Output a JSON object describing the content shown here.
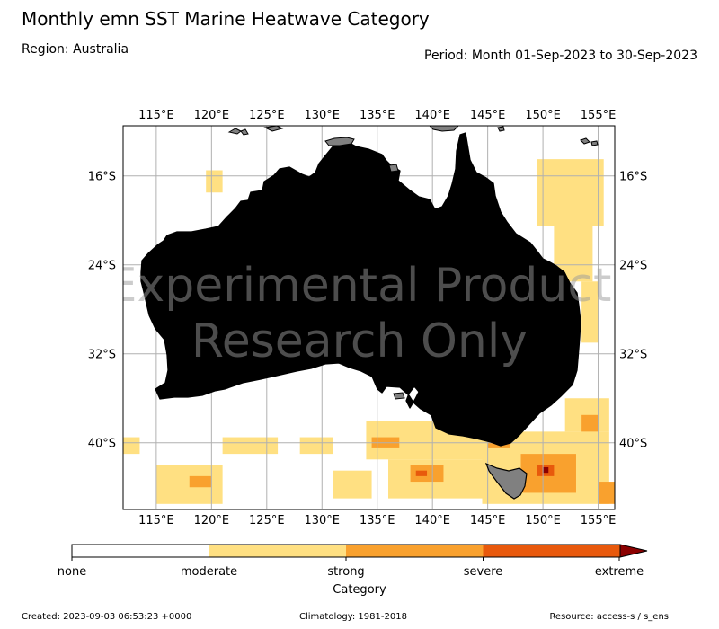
{
  "header": {
    "title": "Monthly emn SST Marine Heatwave Category",
    "region": "Region: Australia",
    "period": "Period: Month 01-Sep-2023 to 30-Sep-2023"
  },
  "map": {
    "lon_range": [
      112,
      156.5
    ],
    "lat_range": [
      -46,
      -11.5
    ],
    "lon_ticks": [
      115,
      120,
      125,
      130,
      135,
      140,
      145,
      150,
      155
    ],
    "lon_tick_labels": [
      "115°E",
      "120°E",
      "125°E",
      "130°E",
      "135°E",
      "140°E",
      "145°E",
      "150°E",
      "155°E"
    ],
    "lat_ticks": [
      -16,
      -24,
      -32,
      -40
    ],
    "lat_tick_labels": [
      "16°S",
      "24°S",
      "32°S",
      "40°S"
    ],
    "gridlines": true,
    "land_color": "#808080",
    "watermark_lines": [
      "Experimental Product",
      "Research Only"
    ],
    "heatwave_patches": [
      {
        "category": "moderate",
        "lon": [
          149.5,
          155.5
        ],
        "lat": [
          -20.5,
          -14.5
        ]
      },
      {
        "category": "moderate",
        "lon": [
          151,
          154.5
        ],
        "lat": [
          -25.5,
          -20.5
        ]
      },
      {
        "category": "moderate",
        "lon": [
          153.5,
          155
        ],
        "lat": [
          -31,
          -25.5
        ]
      },
      {
        "category": "moderate",
        "lon": [
          119.5,
          121
        ],
        "lat": [
          -17.5,
          -15.5
        ]
      },
      {
        "category": "moderate",
        "lon": [
          112,
          113.5
        ],
        "lat": [
          -41,
          -39.5
        ]
      },
      {
        "category": "moderate",
        "lon": [
          115,
          121
        ],
        "lat": [
          -45.5,
          -42
        ]
      },
      {
        "category": "moderate",
        "lon": [
          121,
          126
        ],
        "lat": [
          -41,
          -39.5
        ]
      },
      {
        "category": "moderate",
        "lon": [
          128,
          131
        ],
        "lat": [
          -41,
          -39.5
        ]
      },
      {
        "category": "moderate",
        "lon": [
          131,
          134.5
        ],
        "lat": [
          -45,
          -42.5
        ]
      },
      {
        "category": "moderate",
        "lon": [
          134,
          144.5
        ],
        "lat": [
          -41.5,
          -38
        ]
      },
      {
        "category": "moderate",
        "lon": [
          136,
          145
        ],
        "lat": [
          -45,
          -41.5
        ]
      },
      {
        "category": "moderate",
        "lon": [
          144.5,
          156
        ],
        "lat": [
          -45.5,
          -39
        ]
      },
      {
        "category": "moderate",
        "lon": [
          152,
          156
        ],
        "lat": [
          -39,
          -36
        ]
      },
      {
        "category": "strong",
        "lon": [
          118,
          120
        ],
        "lat": [
          -44,
          -43
        ]
      },
      {
        "category": "strong",
        "lon": [
          134.5,
          137
        ],
        "lat": [
          -40.5,
          -39.5
        ]
      },
      {
        "category": "strong",
        "lon": [
          138,
          141
        ],
        "lat": [
          -43.5,
          -42
        ]
      },
      {
        "category": "strong",
        "lon": [
          145,
          147
        ],
        "lat": [
          -40.5,
          -39.5
        ]
      },
      {
        "category": "strong",
        "lon": [
          148,
          153
        ],
        "lat": [
          -44.5,
          -41
        ]
      },
      {
        "category": "strong",
        "lon": [
          153.5,
          155
        ],
        "lat": [
          -39,
          -37.5
        ]
      },
      {
        "category": "strong",
        "lon": [
          155,
          156.5
        ],
        "lat": [
          -45.5,
          -43.5
        ]
      },
      {
        "category": "severe",
        "lon": [
          149.5,
          151
        ],
        "lat": [
          -43,
          -42
        ]
      },
      {
        "category": "severe",
        "lon": [
          138.5,
          139.5
        ],
        "lat": [
          -43,
          -42.5
        ]
      },
      {
        "category": "extreme",
        "lon": [
          150,
          150.5
        ],
        "lat": [
          -42.7,
          -42.2
        ]
      }
    ]
  },
  "colorbar": {
    "label": "Category",
    "categories": [
      {
        "name": "none",
        "color": "#ffffff"
      },
      {
        "name": "moderate",
        "color": "#ffe082"
      },
      {
        "name": "strong",
        "color": "#f9a12e"
      },
      {
        "name": "severe",
        "color": "#e8590c"
      },
      {
        "name": "extreme",
        "color": "#8b0000"
      }
    ]
  },
  "footer": {
    "created": "Created: 2023-09-03 06:53:23 +0000",
    "climatology": "Climatology: 1981-2018",
    "resource": "Resource: access-s / s_ens"
  }
}
